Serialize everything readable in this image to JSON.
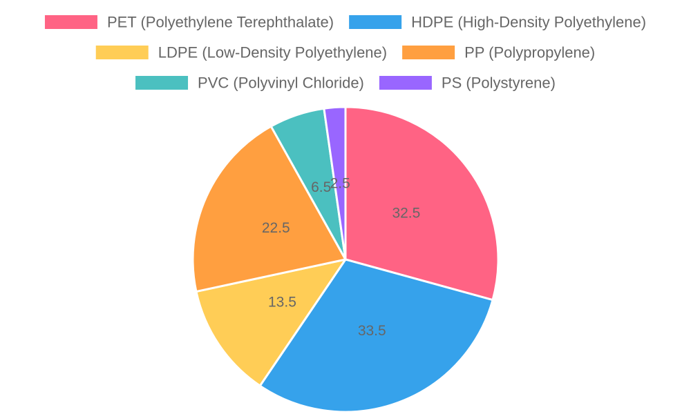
{
  "chart_data": {
    "type": "pie",
    "categories": [
      "PET (Polyethylene Terephthalate)",
      "HDPE (High-Density Polyethylene)",
      "LDPE (Low-Density Polyethylene)",
      "PP (Polypropylene)",
      "PVC (Polyvinyl Chloride)",
      "PS (Polystyrene)"
    ],
    "values": [
      32.5,
      33.5,
      13.5,
      22.5,
      6.5,
      2.5
    ],
    "data_labels": [
      "32.5",
      "33.5",
      "13.5",
      "22.5",
      "6.5",
      "2.5"
    ],
    "colors": [
      "#ff6384",
      "#36a2eb",
      "#ffcd56",
      "#ff9f40",
      "#4bc0c0",
      "#9966ff"
    ],
    "title": "",
    "legend": {
      "position": "top",
      "rows": [
        [
          0,
          1
        ],
        [
          2,
          3
        ],
        [
          4,
          5
        ]
      ]
    },
    "start_angle_deg": 0,
    "direction": "clockwise",
    "slice_border_color": "#ffffff",
    "label_color": "#666666"
  }
}
